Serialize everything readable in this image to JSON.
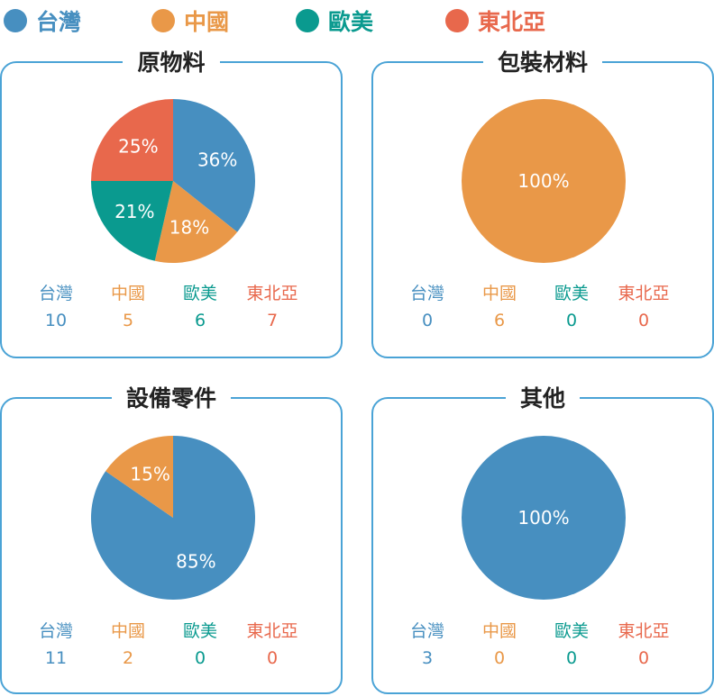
{
  "colors": {
    "taiwan": "#478fc0",
    "china": "#e99848",
    "europe": "#0a9a8f",
    "northeast": "#e8684c",
    "border": "#4aa3d6"
  },
  "legend": [
    {
      "label": "台灣",
      "color": "#478fc0"
    },
    {
      "label": "中國",
      "color": "#e99848"
    },
    {
      "label": "歐美",
      "color": "#0a9a8f"
    },
    {
      "label": "東北亞",
      "color": "#e8684c"
    }
  ],
  "chart_data": [
    {
      "type": "pie",
      "title": "原物料",
      "categories": [
        "台灣",
        "中國",
        "歐美",
        "東北亞"
      ],
      "values": [
        10,
        5,
        6,
        7
      ],
      "labels": [
        "36%",
        "18%",
        "21%",
        "25%"
      ],
      "colors": [
        "#478fc0",
        "#e99848",
        "#0a9a8f",
        "#e8684c"
      ]
    },
    {
      "type": "pie",
      "title": "包裝材料",
      "categories": [
        "台灣",
        "中國",
        "歐美",
        "東北亞"
      ],
      "values": [
        0,
        6,
        0,
        0
      ],
      "labels": [
        "",
        "100%",
        "",
        ""
      ],
      "colors": [
        "#478fc0",
        "#e99848",
        "#0a9a8f",
        "#e8684c"
      ]
    },
    {
      "type": "pie",
      "title": "設備零件",
      "categories": [
        "台灣",
        "中國",
        "歐美",
        "東北亞"
      ],
      "values": [
        11,
        2,
        0,
        0
      ],
      "labels": [
        "85%",
        "15%",
        "",
        ""
      ],
      "colors": [
        "#478fc0",
        "#e99848",
        "#0a9a8f",
        "#e8684c"
      ]
    },
    {
      "type": "pie",
      "title": "其他",
      "categories": [
        "台灣",
        "中國",
        "歐美",
        "東北亞"
      ],
      "values": [
        3,
        0,
        0,
        0
      ],
      "labels": [
        "100%",
        "",
        "",
        ""
      ],
      "colors": [
        "#478fc0",
        "#e99848",
        "#0a9a8f",
        "#e8684c"
      ]
    }
  ]
}
